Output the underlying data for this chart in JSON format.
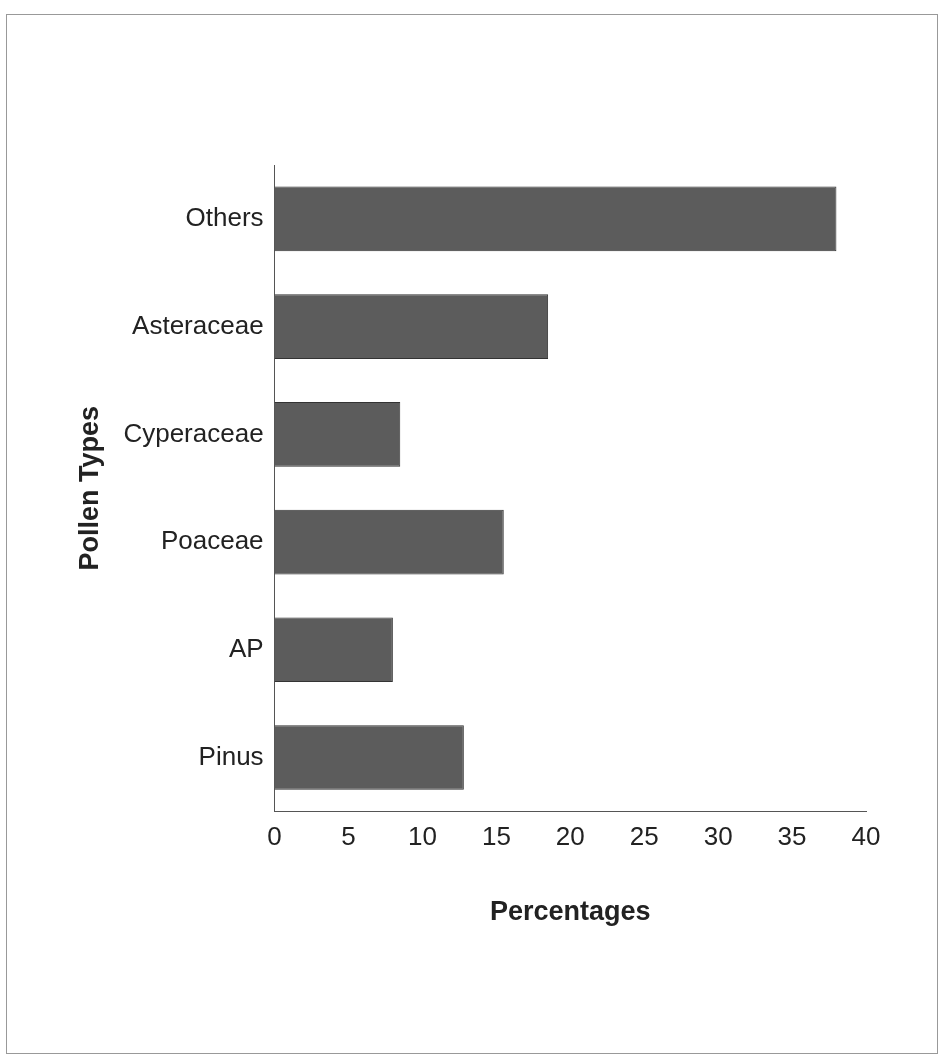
{
  "chart_data": {
    "type": "bar",
    "orientation": "horizontal",
    "xlabel": "Percentages",
    "ylabel": "Pollen Types",
    "categories": [
      "Others",
      "Asteraceae",
      "Cyperaceae",
      "Poaceae",
      "AP",
      "Pinus"
    ],
    "values": [
      38,
      18.5,
      8.5,
      15.5,
      8,
      12.8
    ],
    "color": "#5c5c5c",
    "xlim": [
      0,
      40
    ],
    "xticks": [
      0,
      5,
      10,
      15,
      20,
      25,
      30,
      35,
      40
    ],
    "grid": false,
    "legend": false
  }
}
